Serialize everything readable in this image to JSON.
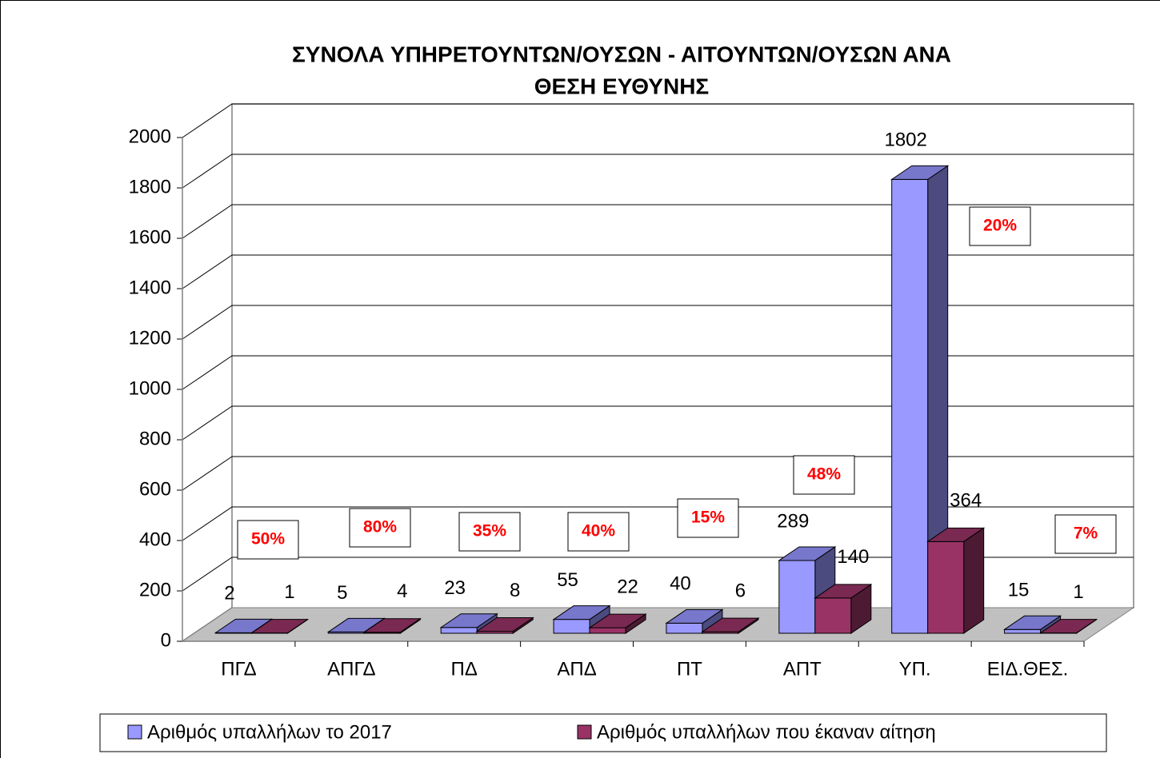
{
  "chart_data": {
    "type": "bar3d",
    "title": [
      "ΣΥΝΟΛΑ ΥΠΗΡΕΤΟΥΝΤΩΝ/ΟΥΣΩΝ - ΑΙΤΟΥΝΤΩΝ/ΟΥΣΩΝ ΑΝΑ",
      "ΘΕΣΗ ΕΥΘΥΝΗΣ"
    ],
    "categories": [
      "ΠΓΔ",
      "ΑΠΓΔ",
      "ΠΔ",
      "ΑΠΔ",
      "ΠΤ",
      "ΑΠΤ",
      "ΥΠ.",
      "ΕΙΔ.ΘΕΣ."
    ],
    "series": [
      {
        "name": "Αριθμός υπαλλήλων το 2017",
        "color": "#9999ff",
        "top": "#7777cc",
        "side": "#4b4b80",
        "values": [
          2,
          5,
          23,
          55,
          40,
          289,
          1802,
          15
        ]
      },
      {
        "name": "Αριθμός υπαλλήλων που έκαναν αίτηση",
        "color": "#993366",
        "top": "#7a2952",
        "side": "#4d1a33",
        "values": [
          1,
          4,
          8,
          22,
          6,
          140,
          364,
          1
        ]
      }
    ],
    "annotations": [
      "50%",
      "80%",
      "35%",
      "40%",
      "15%",
      "48%",
      "20%",
      "7%"
    ],
    "ylim": [
      0,
      2000
    ],
    "yticks": [
      0,
      200,
      400,
      600,
      800,
      1000,
      1200,
      1400,
      1600,
      1800,
      2000
    ],
    "grid": true
  }
}
